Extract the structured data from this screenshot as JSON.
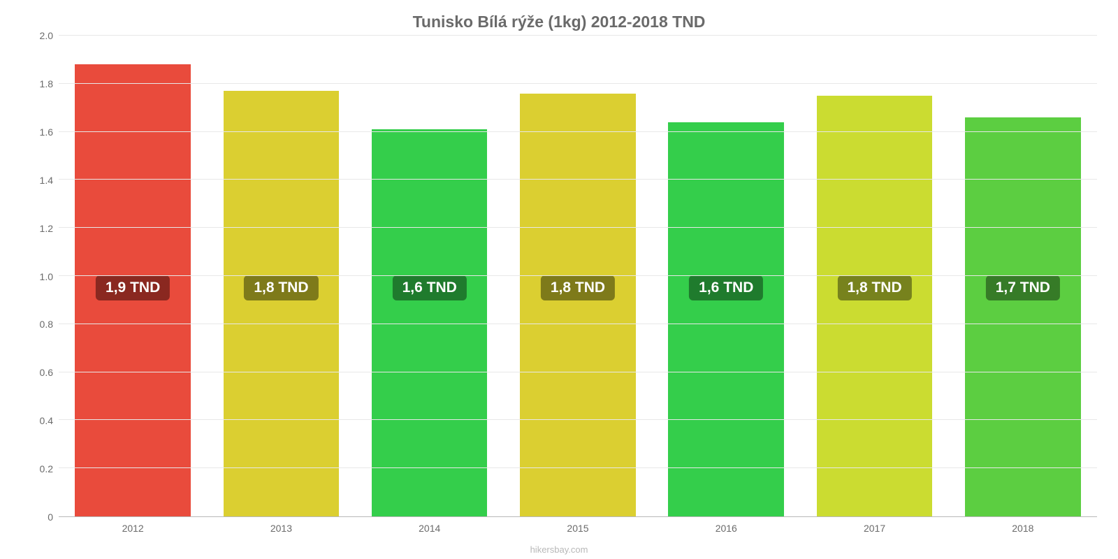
{
  "chart": {
    "type": "bar",
    "title": "Tunisko Bílá rýže (1kg) 2012-2018 TND",
    "title_fontsize": 23,
    "title_color": "#6a6a6a",
    "title_fontweight": "700",
    "background_color": "#ffffff",
    "grid_color": "#e8e8e8",
    "axis_color": "#b8b8b8",
    "tick_color": "#6a6a6a",
    "tick_fontsize": 14,
    "ylim_min": 0,
    "ylim_max": 2.0,
    "yticks": [
      "0",
      "0.2",
      "0.4",
      "0.6",
      "0.8",
      "1.0",
      "1.2",
      "1.4",
      "1.6",
      "1.8",
      "2.0"
    ],
    "ytick_values": [
      0,
      0.2,
      0.4,
      0.6,
      0.8,
      1.0,
      1.2,
      1.4,
      1.6,
      1.8,
      2.0
    ],
    "bar_width_pct": 78,
    "bar_label_fontsize": 21,
    "bar_label_color": "#ffffff",
    "bar_label_vertical_center_value": 0.95,
    "categories": [
      "2012",
      "2013",
      "2014",
      "2015",
      "2016",
      "2017",
      "2018"
    ],
    "values": [
      1.88,
      1.77,
      1.61,
      1.76,
      1.64,
      1.75,
      1.66
    ],
    "bar_colors": [
      "#E94B3C",
      "#DBCF31",
      "#34CE4B",
      "#DBCF31",
      "#34CE4B",
      "#CBDC31",
      "#5CCE41"
    ],
    "bar_labels": [
      "1,9 TND",
      "1,8 TND",
      "1,6 TND",
      "1,8 TND",
      "1,6 TND",
      "1,8 TND",
      "1,7 TND"
    ],
    "bar_label_bg": [
      "#8A2820",
      "#7E7A1A",
      "#1F7B2D",
      "#7E7A1A",
      "#1F7B2D",
      "#77821D",
      "#367B27"
    ],
    "attribution": "hikersbay.com",
    "attribution_fontsize": 13,
    "attribution_color": "#b8b8b8"
  }
}
